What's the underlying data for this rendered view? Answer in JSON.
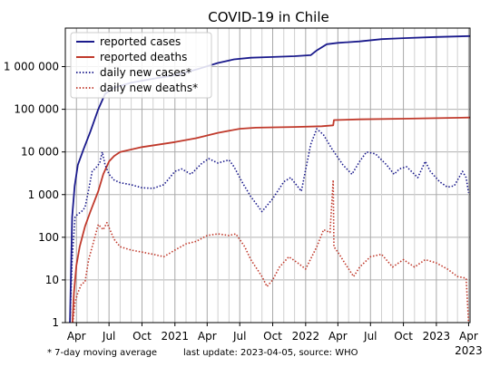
{
  "chart_data": {
    "type": "line",
    "title": "COVID-19 in Chile",
    "x_axis": {
      "ticks": [
        {
          "date": "2020-04-01",
          "label": "Apr",
          "year": ""
        },
        {
          "date": "2020-07-01",
          "label": "Jul",
          "year": ""
        },
        {
          "date": "2020-10-01",
          "label": "Oct",
          "year": ""
        },
        {
          "date": "2021-01-01",
          "label": "2021",
          "year": ""
        },
        {
          "date": "2021-04-01",
          "label": "Apr",
          "year": ""
        },
        {
          "date": "2021-07-01",
          "label": "Jul",
          "year": ""
        },
        {
          "date": "2021-10-01",
          "label": "Oct",
          "year": ""
        },
        {
          "date": "2022-01-01",
          "label": "2022",
          "year": ""
        },
        {
          "date": "2022-04-01",
          "label": "Apr",
          "year": ""
        },
        {
          "date": "2022-07-01",
          "label": "Jul",
          "year": ""
        },
        {
          "date": "2022-10-01",
          "label": "Oct",
          "year": ""
        },
        {
          "date": "2023-01-01",
          "label": "2023",
          "year": ""
        },
        {
          "date": "2023-04-01",
          "label": "Apr",
          "year": "2023"
        }
      ],
      "range": [
        "2020-03-01",
        "2023-04-05"
      ]
    },
    "y_axis": {
      "scale": "log",
      "ylim": [
        1,
        8000000
      ],
      "ticks": [
        {
          "value": 1,
          "label": "1"
        },
        {
          "value": 10,
          "label": "10"
        },
        {
          "value": 100,
          "label": "100"
        },
        {
          "value": 1000,
          "label": "1 000"
        },
        {
          "value": 10000,
          "label": "10 000"
        },
        {
          "value": 100000,
          "label": "100 000"
        },
        {
          "value": 1000000,
          "label": "1 000 000"
        }
      ]
    },
    "grid": true,
    "legend_position": "top-left",
    "series": [
      {
        "name": "reported cases",
        "color": "#1a1a8c",
        "style": "solid",
        "points": [
          [
            "2020-03-14",
            1
          ],
          [
            "2020-03-20",
            300
          ],
          [
            "2020-03-27",
            1600
          ],
          [
            "2020-04-05",
            5000
          ],
          [
            "2020-04-20",
            11000
          ],
          [
            "2020-05-10",
            30000
          ],
          [
            "2020-06-01",
            100000
          ],
          [
            "2020-06-20",
            230000
          ],
          [
            "2020-07-15",
            320000
          ],
          [
            "2020-09-01",
            420000
          ],
          [
            "2020-11-01",
            520000
          ],
          [
            "2021-01-01",
            630000
          ],
          [
            "2021-03-01",
            850000
          ],
          [
            "2021-05-01",
            1220000
          ],
          [
            "2021-06-15",
            1480000
          ],
          [
            "2021-08-01",
            1620000
          ],
          [
            "2021-10-01",
            1680000
          ],
          [
            "2021-12-01",
            1760000
          ],
          [
            "2022-01-15",
            1850000
          ],
          [
            "2022-02-01",
            2400000
          ],
          [
            "2022-03-01",
            3350000
          ],
          [
            "2022-04-01",
            3600000
          ],
          [
            "2022-06-01",
            3900000
          ],
          [
            "2022-08-01",
            4400000
          ],
          [
            "2022-10-01",
            4650000
          ],
          [
            "2023-01-01",
            4950000
          ],
          [
            "2023-04-05",
            5200000
          ]
        ]
      },
      {
        "name": "reported deaths",
        "color": "#c0392b",
        "style": "solid",
        "points": [
          [
            "2020-03-21",
            1
          ],
          [
            "2020-03-25",
            5
          ],
          [
            "2020-04-01",
            22
          ],
          [
            "2020-04-10",
            60
          ],
          [
            "2020-04-25",
            180
          ],
          [
            "2020-05-10",
            400
          ],
          [
            "2020-06-01",
            1200
          ],
          [
            "2020-06-15",
            3000
          ],
          [
            "2020-07-01",
            6000
          ],
          [
            "2020-07-15",
            8000
          ],
          [
            "2020-08-01",
            10000
          ],
          [
            "2020-10-01",
            13000
          ],
          [
            "2021-01-01",
            17000
          ],
          [
            "2021-03-01",
            21000
          ],
          [
            "2021-05-01",
            28000
          ],
          [
            "2021-07-01",
            35000
          ],
          [
            "2021-08-15",
            37000
          ],
          [
            "2021-12-01",
            38500
          ],
          [
            "2022-02-15",
            40000
          ],
          [
            "2022-03-19",
            42000
          ],
          [
            "2022-03-21",
            56000
          ],
          [
            "2022-06-01",
            58000
          ],
          [
            "2022-10-01",
            60000
          ],
          [
            "2023-01-01",
            62000
          ],
          [
            "2023-04-05",
            64000
          ]
        ]
      },
      {
        "name": "daily new cases*",
        "color": "#1a1a8c",
        "style": "dotted",
        "points": [
          [
            "2020-03-14",
            1
          ],
          [
            "2020-03-20",
            30
          ],
          [
            "2020-03-28",
            300
          ],
          [
            "2020-04-05",
            350
          ],
          [
            "2020-04-15",
            400
          ],
          [
            "2020-04-25",
            500
          ],
          [
            "2020-05-05",
            1300
          ],
          [
            "2020-05-15",
            3500
          ],
          [
            "2020-05-25",
            4200
          ],
          [
            "2020-06-05",
            5500
          ],
          [
            "2020-06-12",
            10000
          ],
          [
            "2020-06-20",
            5000
          ],
          [
            "2020-07-01",
            3000
          ],
          [
            "2020-07-15",
            2200
          ],
          [
            "2020-08-01",
            1900
          ],
          [
            "2020-09-01",
            1700
          ],
          [
            "2020-10-01",
            1450
          ],
          [
            "2020-11-01",
            1400
          ],
          [
            "2020-12-01",
            1700
          ],
          [
            "2021-01-01",
            3500
          ],
          [
            "2021-01-20",
            4000
          ],
          [
            "2021-02-15",
            3000
          ],
          [
            "2021-03-15",
            5200
          ],
          [
            "2021-04-05",
            7000
          ],
          [
            "2021-05-01",
            5500
          ],
          [
            "2021-06-01",
            6500
          ],
          [
            "2021-06-15",
            4500
          ],
          [
            "2021-07-10",
            1800
          ],
          [
            "2021-08-01",
            900
          ],
          [
            "2021-09-01",
            400
          ],
          [
            "2021-10-01",
            800
          ],
          [
            "2021-11-01",
            2000
          ],
          [
            "2021-11-20",
            2500
          ],
          [
            "2021-12-20",
            1200
          ],
          [
            "2022-01-15",
            15000
          ],
          [
            "2022-02-01",
            35000
          ],
          [
            "2022-02-20",
            25000
          ],
          [
            "2022-03-15",
            12000
          ],
          [
            "2022-04-15",
            5000
          ],
          [
            "2022-05-10",
            3000
          ],
          [
            "2022-06-01",
            6000
          ],
          [
            "2022-06-20",
            10000
          ],
          [
            "2022-07-15",
            9000
          ],
          [
            "2022-08-15",
            5000
          ],
          [
            "2022-09-05",
            3000
          ],
          [
            "2022-09-20",
            4000
          ],
          [
            "2022-10-10",
            4500
          ],
          [
            "2022-11-10",
            2500
          ],
          [
            "2022-12-01",
            6000
          ],
          [
            "2022-12-15",
            3500
          ],
          [
            "2023-01-10",
            2000
          ],
          [
            "2023-02-01",
            1500
          ],
          [
            "2023-02-20",
            1600
          ],
          [
            "2023-03-15",
            3500
          ],
          [
            "2023-03-25",
            2500
          ],
          [
            "2023-04-01",
            1100
          ]
        ]
      },
      {
        "name": "daily new deaths*",
        "color": "#c0392b",
        "style": "dotted",
        "points": [
          [
            "2020-03-22",
            1
          ],
          [
            "2020-03-28",
            3
          ],
          [
            "2020-04-05",
            5
          ],
          [
            "2020-04-15",
            8
          ],
          [
            "2020-04-25",
            9
          ],
          [
            "2020-05-05",
            30
          ],
          [
            "2020-05-15",
            60
          ],
          [
            "2020-05-25",
            120
          ],
          [
            "2020-06-01",
            200
          ],
          [
            "2020-06-15",
            150
          ],
          [
            "2020-06-25",
            220
          ],
          [
            "2020-07-15",
            90
          ],
          [
            "2020-08-01",
            60
          ],
          [
            "2020-09-01",
            50
          ],
          [
            "2020-10-01",
            45
          ],
          [
            "2020-11-01",
            40
          ],
          [
            "2020-12-01",
            35
          ],
          [
            "2021-01-01",
            50
          ],
          [
            "2021-02-01",
            70
          ],
          [
            "2021-03-01",
            80
          ],
          [
            "2021-04-01",
            110
          ],
          [
            "2021-05-01",
            120
          ],
          [
            "2021-06-01",
            110
          ],
          [
            "2021-06-20",
            120
          ],
          [
            "2021-07-15",
            60
          ],
          [
            "2021-08-01",
            30
          ],
          [
            "2021-09-01",
            12
          ],
          [
            "2021-09-15",
            7
          ],
          [
            "2021-10-01",
            10
          ],
          [
            "2021-10-20",
            20
          ],
          [
            "2021-11-15",
            35
          ],
          [
            "2021-12-10",
            25
          ],
          [
            "2022-01-01",
            18
          ],
          [
            "2022-02-01",
            60
          ],
          [
            "2022-02-20",
            150
          ],
          [
            "2022-03-10",
            130
          ],
          [
            "2022-03-19",
            2200
          ],
          [
            "2022-03-21",
            60
          ],
          [
            "2022-04-05",
            40
          ],
          [
            "2022-04-20",
            25
          ],
          [
            "2022-05-15",
            12
          ],
          [
            "2022-06-01",
            20
          ],
          [
            "2022-07-01",
            35
          ],
          [
            "2022-08-01",
            40
          ],
          [
            "2022-09-01",
            20
          ],
          [
            "2022-10-01",
            30
          ],
          [
            "2022-11-01",
            20
          ],
          [
            "2022-12-01",
            30
          ],
          [
            "2023-01-01",
            25
          ],
          [
            "2023-02-01",
            18
          ],
          [
            "2023-03-01",
            12
          ],
          [
            "2023-03-25",
            11
          ],
          [
            "2023-04-01",
            1
          ]
        ]
      }
    ],
    "footnote": "* 7-day moving average",
    "update_note": "last update: 2023-04-05, source: WHO"
  }
}
